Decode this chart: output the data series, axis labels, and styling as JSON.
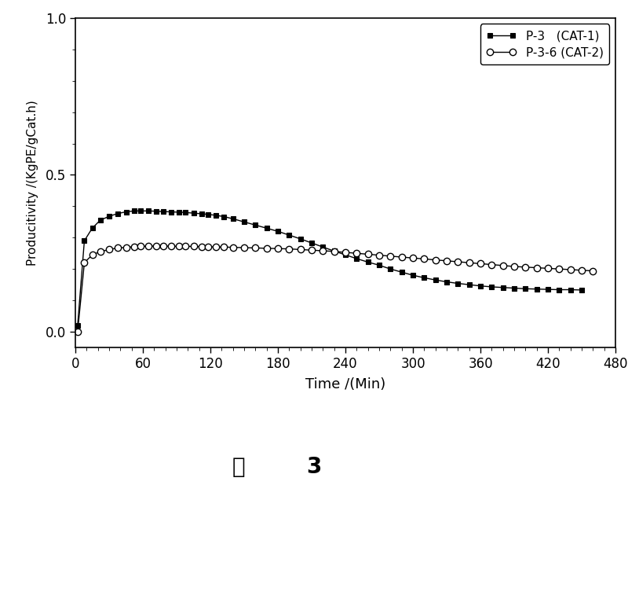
{
  "title": "",
  "xlabel": "Time /(Min)",
  "ylabel": "Producitivity /(KgPE/gCat.h)",
  "xlim": [
    0,
    480
  ],
  "ylim": [
    -0.05,
    1.0
  ],
  "yticks": [
    0.0,
    0.5,
    1.0
  ],
  "xticks": [
    0,
    60,
    120,
    180,
    240,
    300,
    360,
    420,
    480
  ],
  "legend1_label": "P-3   (CAT-1)",
  "legend2_label": "P-3-6 (CAT-2)",
  "caption_zh": "图",
  "caption_num": "3",
  "background_color": "#ffffff",
  "cat1_color": "#000000",
  "cat2_color": "#000000",
  "cat1_x": [
    2,
    8,
    15,
    22,
    30,
    38,
    45,
    52,
    58,
    65,
    72,
    78,
    85,
    92,
    98,
    105,
    112,
    118,
    125,
    132,
    140,
    150,
    160,
    170,
    180,
    190,
    200,
    210,
    220,
    230,
    240,
    250,
    260,
    270,
    280,
    290,
    300,
    310,
    320,
    330,
    340,
    350,
    360,
    370,
    380,
    390,
    400,
    410,
    420,
    430,
    440,
    450
  ],
  "cat1_y": [
    0.02,
    0.29,
    0.33,
    0.355,
    0.368,
    0.377,
    0.382,
    0.385,
    0.385,
    0.385,
    0.384,
    0.383,
    0.382,
    0.381,
    0.38,
    0.378,
    0.376,
    0.374,
    0.371,
    0.367,
    0.36,
    0.35,
    0.34,
    0.33,
    0.32,
    0.308,
    0.296,
    0.283,
    0.27,
    0.257,
    0.245,
    0.233,
    0.222,
    0.212,
    0.2,
    0.19,
    0.18,
    0.172,
    0.165,
    0.159,
    0.154,
    0.15,
    0.146,
    0.143,
    0.141,
    0.139,
    0.137,
    0.136,
    0.135,
    0.134,
    0.134,
    0.133
  ],
  "cat2_x": [
    2,
    8,
    15,
    22,
    30,
    38,
    45,
    52,
    58,
    65,
    72,
    78,
    85,
    92,
    98,
    105,
    112,
    118,
    125,
    132,
    140,
    150,
    160,
    170,
    180,
    190,
    200,
    210,
    220,
    230,
    240,
    250,
    260,
    270,
    280,
    290,
    300,
    310,
    320,
    330,
    340,
    350,
    360,
    370,
    380,
    390,
    400,
    410,
    420,
    430,
    440,
    450,
    460
  ],
  "cat2_y": [
    0.0,
    0.22,
    0.245,
    0.255,
    0.262,
    0.267,
    0.269,
    0.271,
    0.272,
    0.273,
    0.273,
    0.273,
    0.273,
    0.272,
    0.272,
    0.272,
    0.271,
    0.271,
    0.27,
    0.27,
    0.269,
    0.268,
    0.267,
    0.266,
    0.265,
    0.264,
    0.262,
    0.26,
    0.258,
    0.256,
    0.253,
    0.25,
    0.247,
    0.244,
    0.241,
    0.238,
    0.235,
    0.232,
    0.229,
    0.226,
    0.223,
    0.22,
    0.217,
    0.214,
    0.211,
    0.208,
    0.206,
    0.204,
    0.202,
    0.2,
    0.198,
    0.196,
    0.194
  ]
}
